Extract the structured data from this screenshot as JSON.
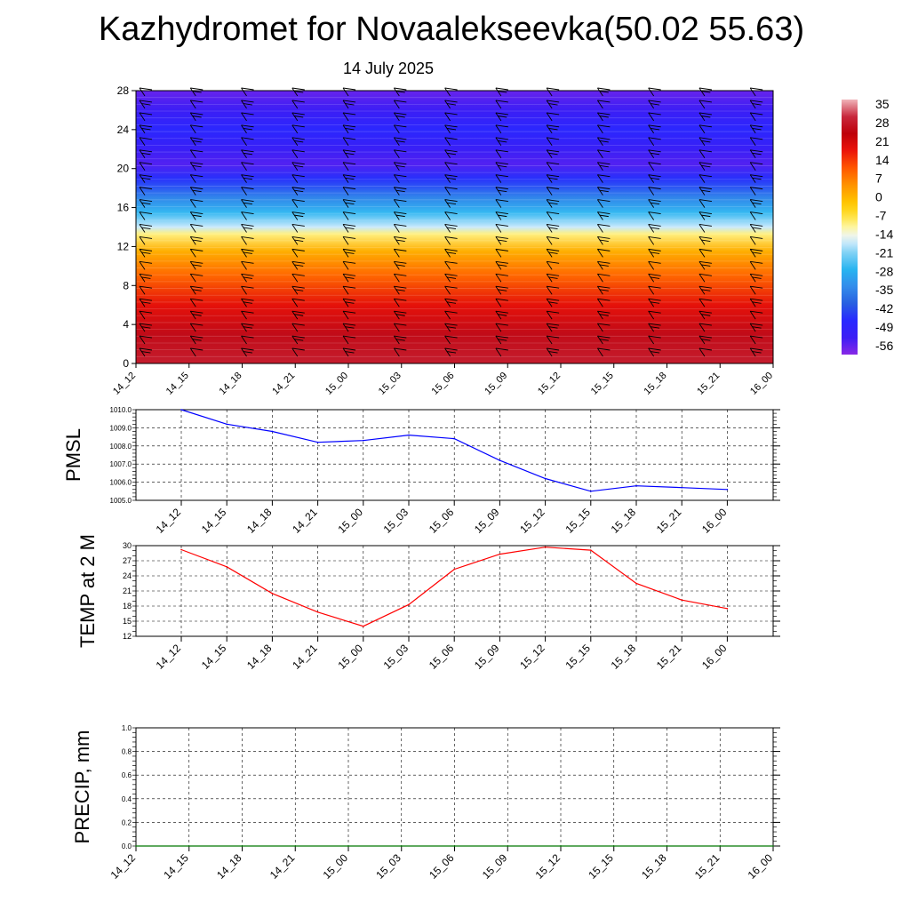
{
  "header": {
    "title": "Kazhydromet for Novaalekseevka(50.02 55.63)",
    "date": "14 July 2025"
  },
  "colors": {
    "pmsl_line": "#0000ff",
    "temp_line": "#ff0000",
    "precip_line": "#007700",
    "grid": "#000000"
  },
  "chart_data": [
    {
      "type": "heatmap",
      "name": "vertical-temperature-wind-cross-section",
      "x_ticks": [
        "14_12",
        "14_15",
        "14_18",
        "14_21",
        "15_00",
        "15_03",
        "15_06",
        "15_09",
        "15_12",
        "15_15",
        "15_18",
        "15_21",
        "16_00"
      ],
      "y_ticks": [
        "0",
        "4",
        "8",
        "12",
        "16",
        "20",
        "24",
        "28"
      ],
      "ylim": [
        0,
        28
      ],
      "colorbar_labels": [
        "35",
        "28",
        "21",
        "14",
        "7",
        "0",
        "-7",
        "-14",
        "-21",
        "-28",
        "-35",
        "-42",
        "-49",
        "-56"
      ],
      "colorbar_range": [
        -63,
        42
      ],
      "profile": [
        {
          "y": 0,
          "v": 33
        },
        {
          "y": 3,
          "v": 30
        },
        {
          "y": 6,
          "v": 22
        },
        {
          "y": 9,
          "v": 12
        },
        {
          "y": 11.5,
          "v": 3
        },
        {
          "y": 13.3,
          "v": -9
        },
        {
          "y": 14,
          "v": -17
        },
        {
          "y": 15.5,
          "v": -27
        },
        {
          "y": 17,
          "v": -36
        },
        {
          "y": 19,
          "v": -48
        },
        {
          "y": 20.5,
          "v": -58
        },
        {
          "y": 22,
          "v": -55
        },
        {
          "y": 24,
          "v": -50
        },
        {
          "y": 26,
          "v": -56
        },
        {
          "y": 28,
          "v": -60
        }
      ],
      "wind_barbs": "black barbs at each time step and level"
    },
    {
      "type": "line",
      "name": "PMSL",
      "ylabel": "PMSL",
      "ylim": [
        1005.0,
        1010.0
      ],
      "y_ticks": [
        "1005.0",
        "1006.0",
        "1007.0",
        "1008.0",
        "1009.0",
        "1010.0"
      ],
      "categories": [
        "14_12",
        "14_15",
        "14_18",
        "14_21",
        "15_00",
        "15_03",
        "15_06",
        "15_09",
        "15_12",
        "15_15",
        "15_18",
        "15_21",
        "16_00"
      ],
      "values": [
        1010.0,
        1009.2,
        1008.8,
        1008.2,
        1008.3,
        1008.6,
        1008.4,
        1007.2,
        1006.2,
        1005.5,
        1005.8,
        1005.7,
        1005.6
      ]
    },
    {
      "type": "line",
      "name": "TEMP at 2 M",
      "ylabel": "TEMP at 2 M",
      "ylim": [
        12,
        30
      ],
      "y_ticks": [
        "12",
        "15",
        "18",
        "21",
        "24",
        "27",
        "30"
      ],
      "categories": [
        "14_12",
        "14_15",
        "14_18",
        "14_21",
        "15_00",
        "15_03",
        "15_06",
        "15_09",
        "15_12",
        "15_15",
        "15_18",
        "15_21",
        "16_00"
      ],
      "values": [
        29.2,
        25.8,
        20.5,
        16.8,
        14.0,
        18.3,
        25.3,
        28.3,
        29.7,
        29.1,
        22.5,
        19.2,
        17.5
      ]
    },
    {
      "type": "line",
      "name": "PRECIP, mm",
      "ylabel": "PRECIP, mm",
      "ylim": [
        0.0,
        1.0
      ],
      "y_ticks": [
        "0.0",
        "0.2",
        "0.4",
        "0.6",
        "0.8",
        "1.0"
      ],
      "x_ticks": [
        "14_12",
        "14_15",
        "14_18",
        "14_21",
        "15_00",
        "15_03",
        "15_06",
        "15_09",
        "15_12",
        "15_15",
        "15_18",
        "15_21",
        "16_00"
      ],
      "values": [
        0,
        0,
        0,
        0,
        0,
        0,
        0,
        0,
        0,
        0,
        0,
        0,
        0
      ]
    }
  ]
}
